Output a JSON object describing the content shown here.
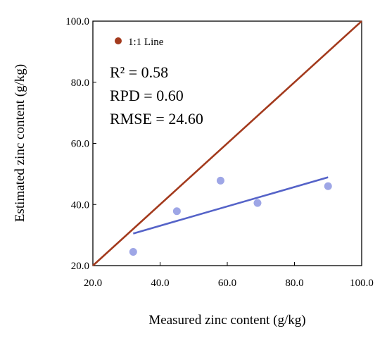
{
  "chart_data": {
    "type": "scatter",
    "title": "",
    "xlabel": "Measured zinc content (g/kg)",
    "ylabel": "Estimated zinc content (g/kg)",
    "xlim": [
      20,
      100
    ],
    "ylim": [
      20,
      100
    ],
    "xticks": [
      20,
      40,
      60,
      80,
      100
    ],
    "yticks": [
      20,
      40,
      60,
      80,
      100
    ],
    "xtick_labels": [
      "20.0",
      "40.0",
      "60.0",
      "80.0",
      "100.0"
    ],
    "ytick_labels": [
      "20.0",
      "40.0",
      "60.0",
      "80.0",
      "100.0"
    ],
    "grid": false,
    "legend": {
      "placement": "top-left",
      "entries": [
        "1:1 Line"
      ]
    },
    "series": [
      {
        "type": "scatter",
        "color": "#9ea6e6",
        "x": [
          32,
          45,
          58,
          69,
          90
        ],
        "y": [
          24.5,
          37.8,
          47.8,
          40.5,
          46
        ]
      },
      {
        "type": "line",
        "name": "1:1 Line",
        "color": "#a33a1d",
        "x": [
          20,
          100
        ],
        "y": [
          20,
          100
        ]
      },
      {
        "type": "line",
        "color": "#5563c8",
        "x": [
          32,
          90
        ],
        "y": [
          30.5,
          48.9
        ]
      }
    ],
    "annotations": [
      "R² = 0.58",
      "RPD = 0.60",
      "RMSE = 24.60"
    ]
  }
}
